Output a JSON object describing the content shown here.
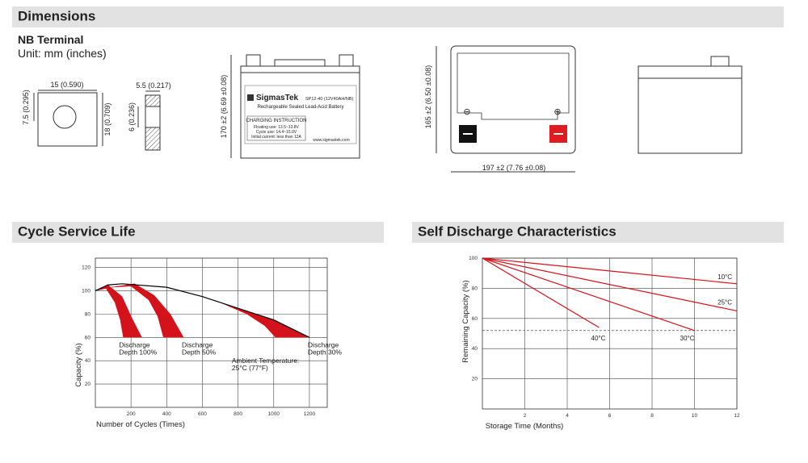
{
  "dimensions": {
    "title": "Dimensions",
    "terminal_title": "NB Terminal",
    "unit": "Unit: mm (inches)",
    "terminal_dims": [
      "15 (0.590)",
      "7.5 (0.295)",
      "18 (0.709)",
      "5.5 (0.217)",
      "6 (0.236)"
    ],
    "battery_dims": [
      "170 ±2 (6.69 ±0.08)",
      "165 ±2 (6.50 ±0.08)",
      "197 ±2 (7.76 ±0.08)"
    ],
    "label": {
      "brand": "SigmasTek",
      "model": "SP12-40 (12V40AH/NB)",
      "desc": "Rechargeable Sealed Lead-Acid Battery",
      "charging": [
        "CHARGING INSTRUCTION",
        "Floating use: 13.5~13.8V",
        "Cycle use: 14.4~15.0V",
        "Initial current: less than 12A"
      ],
      "url": "www.sigmastek.com"
    },
    "polarity": [
      "⊖",
      "⊕"
    ]
  },
  "cycle_life": {
    "title": "Cycle Service Life",
    "chart": {
      "type": "line",
      "x_label": "Number of Cycles (Times)",
      "y_label": "Capacity (%)",
      "xlim": [
        0,
        1300
      ],
      "ylim": [
        0,
        128
      ],
      "xticks": [
        200,
        400,
        600,
        800,
        1000,
        1200
      ],
      "yticks": [
        20,
        40,
        60,
        80,
        100,
        120
      ],
      "grid": true,
      "series": [
        {
          "color": "#000000",
          "x": [
            0,
            70,
            150,
            400,
            600,
            800,
            1000,
            1200
          ],
          "values": [
            100,
            105,
            106,
            103,
            95,
            85,
            75,
            60
          ]
        }
      ],
      "regions": [
        {
          "label": [
            "Discharge",
            "Depth 100%"
          ],
          "color": "#d4121b",
          "outer": {
            "x": [
              0,
              70,
              150,
              200,
              260
            ],
            "values": [
              100,
              105,
              95,
              78,
              60
            ]
          },
          "inner": {
            "x": [
              0,
              60,
              110,
              140,
              157
            ],
            "values": [
              100,
              102,
              90,
              75,
              60
            ]
          }
        },
        {
          "label": [
            "Discharge",
            "Depth 50%"
          ],
          "color": "#d4121b",
          "outer": {
            "x": [
              90,
              220,
              330,
              420,
              494
            ],
            "values": [
              103,
              106,
              96,
              80,
              60
            ]
          },
          "inner": {
            "x": [
              90,
              200,
              300,
              350,
              382
            ],
            "values": [
              103,
              104,
              92,
              78,
              60
            ]
          }
        },
        {
          "label": [
            "Discharge",
            "Depth 30%"
          ],
          "color": "#d4121b",
          "outer": {
            "x": [
              700,
              800,
              1000,
              1200
            ],
            "values": [
              90,
              85,
              75,
              60
            ]
          },
          "inner": {
            "x": [
              700,
              850,
              950,
              1010
            ],
            "values": [
              90,
              80,
              70,
              60
            ]
          }
        }
      ],
      "annotation": [
        "Ambient Temperature:",
        "25°C (77°F)"
      ]
    }
  },
  "self_discharge": {
    "title": "Self Discharge Characteristics",
    "chart": {
      "type": "line",
      "x_label": "Storage Time (Months)",
      "y_label": "Remaining Capacity (%)",
      "xlim": [
        0,
        12
      ],
      "ylim": [
        0,
        100
      ],
      "xticks": [
        2,
        4,
        6,
        8,
        10,
        12
      ],
      "yticks": [
        20,
        40,
        60,
        80,
        100
      ],
      "grid": true,
      "reference_line": 52,
      "series": [
        {
          "name": "10°C",
          "color": "#d4121b",
          "x": [
            0,
            12
          ],
          "values": [
            100,
            83
          ]
        },
        {
          "name": "25°C",
          "color": "#d4121b",
          "x": [
            0,
            12
          ],
          "values": [
            100,
            65
          ]
        },
        {
          "name": "30°C",
          "color": "#d4121b",
          "x": [
            0,
            10
          ],
          "values": [
            100,
            52
          ]
        },
        {
          "name": "40°C",
          "color": "#d4121b",
          "x": [
            0,
            5.5
          ],
          "values": [
            100,
            54
          ]
        }
      ]
    }
  }
}
